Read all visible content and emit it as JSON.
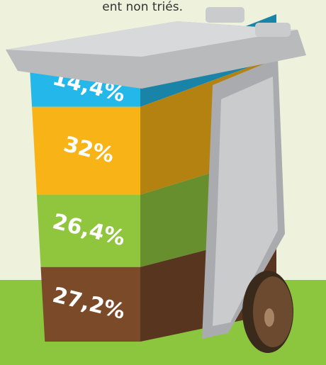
{
  "chart_data": {
    "type": "stacked-bin",
    "title": "ent non triés.",
    "values": [
      14.4,
      32,
      26.4,
      27.2
    ],
    "value_labels": [
      "14,4%",
      "32%",
      "26,4%",
      "27,2%"
    ],
    "colors": [
      "#23b8e9",
      "#f8b417",
      "#8fc63e",
      "#7a4a29"
    ]
  }
}
